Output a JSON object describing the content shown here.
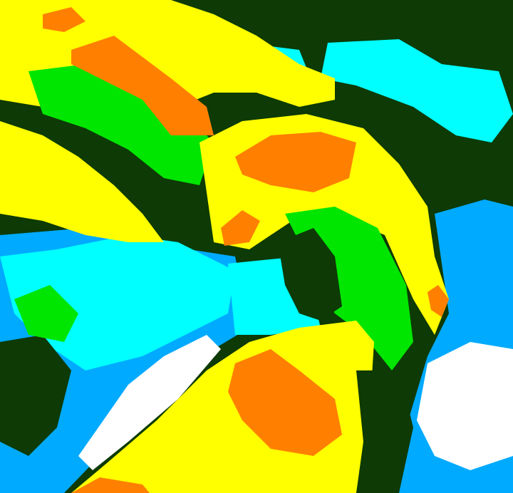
{
  "map": {
    "type": "classified satellite imagery",
    "palette": {
      "dark_green": "#0d3a05",
      "green": "#00e600",
      "yellow": "#ffff00",
      "orange": "#ff8000",
      "cyan": "#00ffff",
      "light_blue": "#00aaff",
      "white": "#ffffff"
    }
  }
}
